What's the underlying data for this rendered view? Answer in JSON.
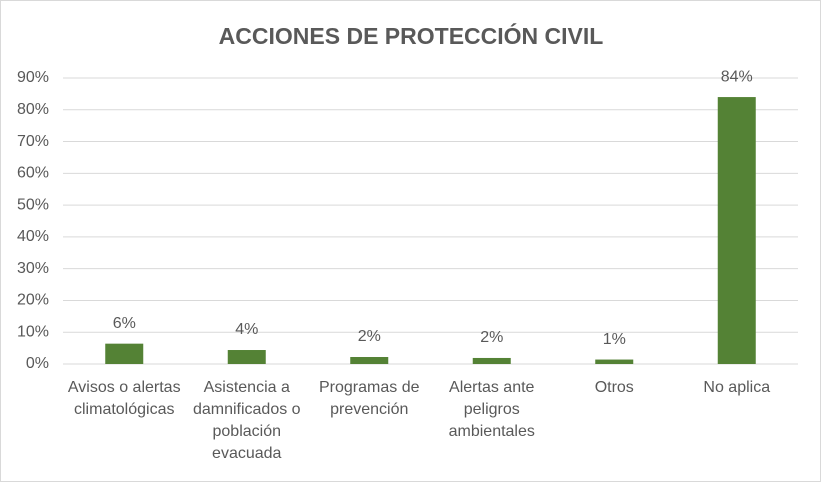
{
  "chart_data": {
    "type": "bar",
    "title": "ACCIONES DE PROTECCIÓN CIVIL",
    "categories": [
      "Avisos o alertas climatológicas",
      "Asistencia a damnificados o población evacuada",
      "Programas de prevención",
      "Alertas ante peligros ambientales",
      "Otros",
      "No aplica"
    ],
    "values": [
      6.4,
      4.4,
      2.2,
      1.9,
      1.4,
      84
    ],
    "value_labels": [
      "6%",
      "4%",
      "2%",
      "2%",
      "1%",
      "84%"
    ],
    "color": "#548235",
    "ylim": [
      0,
      90
    ],
    "yticks": [
      {
        "value": 0,
        "label": "0%"
      },
      {
        "value": 10,
        "label": "10%"
      },
      {
        "value": 20,
        "label": "20%"
      },
      {
        "value": 30,
        "label": "30%"
      },
      {
        "value": 40,
        "label": "40%"
      },
      {
        "value": 50,
        "label": "50%"
      },
      {
        "value": 60,
        "label": "60%"
      },
      {
        "value": 70,
        "label": "70%"
      },
      {
        "value": 80,
        "label": "80%"
      },
      {
        "value": 90,
        "label": "90%"
      }
    ],
    "grid": true
  }
}
